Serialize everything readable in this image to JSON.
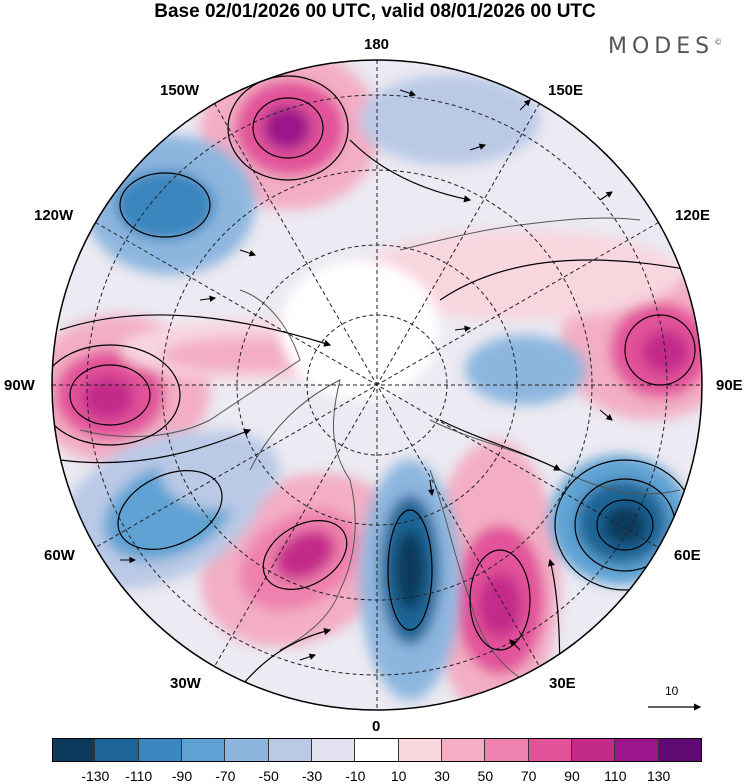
{
  "title": "Base 02/01/2026 00 UTC, valid 08/01/2026 00 UTC",
  "brand": "MODES",
  "brand_mark": "©",
  "longitude_labels": {
    "top": "180",
    "bottom": "0",
    "left": "90W",
    "right": "90E",
    "w150": "150W",
    "e150": "150E",
    "w120": "120W",
    "e120": "120E",
    "w60": "60W",
    "e60": "60E",
    "w30": "30W",
    "e30": "30E"
  },
  "reference_vector": {
    "label": "10"
  },
  "colorbar": {
    "ticks": [
      "-130",
      "-110",
      "-90",
      "-70",
      "-50",
      "-30",
      "-10",
      "10",
      "30",
      "50",
      "70",
      "90",
      "110",
      "130"
    ],
    "colors": [
      "#0d3a5c",
      "#1c6596",
      "#3a86bf",
      "#5ea2d3",
      "#8db6df",
      "#bac9e6",
      "#e2e2f0",
      "#ffffff",
      "#f8d6de",
      "#f3aec4",
      "#ee81ad",
      "#e2539a",
      "#c42a8a",
      "#9b168a",
      "#5f0a72"
    ]
  },
  "colors": {
    "land_outline": "#555555",
    "grid": "#222222",
    "streamline": "#000000"
  }
}
